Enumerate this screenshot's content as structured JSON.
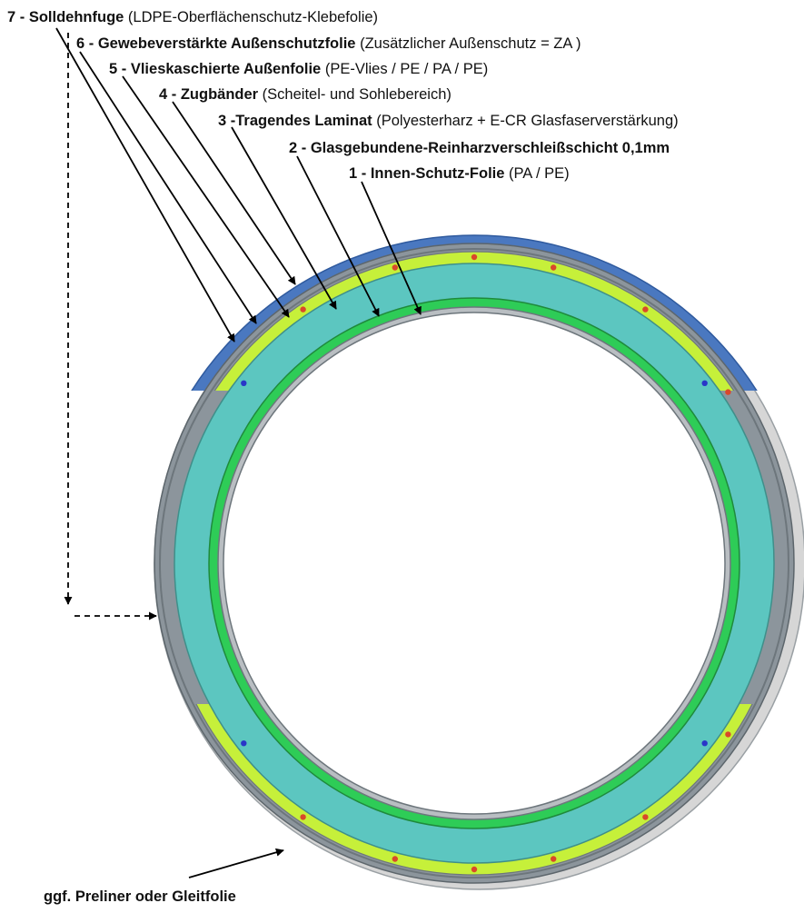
{
  "labels": [
    {
      "id": "l7",
      "bold": "7 - Solldehnfuge",
      "normal": " (LDPE-Oberflächenschutz-Klebefolie)"
    },
    {
      "id": "l6",
      "bold": "6 - Gewebeverstärkte Außenschutzfolie",
      "normal": " (Zusätzlicher Außenschutz = ZA )"
    },
    {
      "id": "l5",
      "bold": "5 - Vlieskaschierte Außenfolie",
      "normal": " (PE-Vlies / PE / PA / PE)"
    },
    {
      "id": "l4",
      "bold": "4 - Zugbänder",
      "normal": " (Scheitel- und Sohlebereich)"
    },
    {
      "id": "l3",
      "bold": "3 -Tragendes Laminat",
      "normal": " (Polyesterharz + E-CR Glasfaserverstärkung)"
    },
    {
      "id": "l2",
      "bold": "2 - Glasgebundene-Reinharzverschleißschicht 0,1mm",
      "normal": ""
    },
    {
      "id": "l1",
      "bold": "1 - Innen-Schutz-Folie",
      "normal": " (PA / PE)"
    }
  ],
  "bottom_label": "ggf. Preliner oder Gleitfolie",
  "colors": {
    "preliner": "#d6d6d6",
    "outer_gray": "#8c959c",
    "yellow_band": "#c6f03a",
    "laminate": "#5cc6c0",
    "green_layer": "#2ecc57",
    "inner_foil": "#b9bec2",
    "blue_cover": "#4a78c0",
    "red_dot": "#d9482b",
    "blue_dot": "#2a36c8"
  }
}
